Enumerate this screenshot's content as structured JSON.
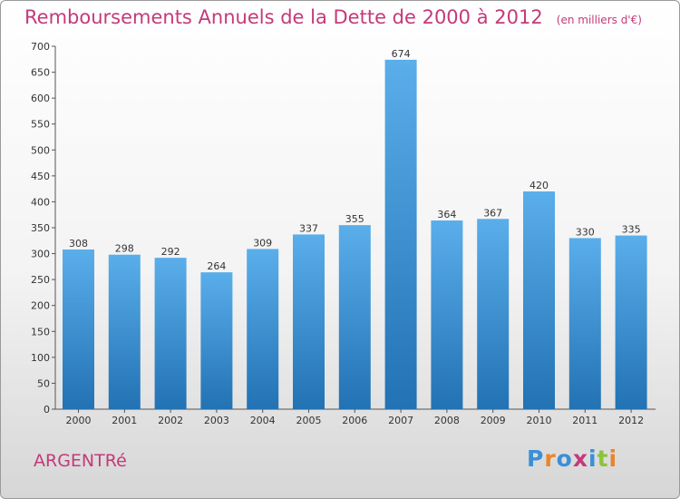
{
  "chart_data": {
    "type": "bar",
    "title": "Remboursements Annuels de la Dette de 2000 à 2012",
    "unit_note": "(en milliers d'€)",
    "categories": [
      "2000",
      "2001",
      "2002",
      "2003",
      "2004",
      "2005",
      "2006",
      "2007",
      "2008",
      "2009",
      "2010",
      "2011",
      "2012"
    ],
    "values": [
      308,
      298,
      292,
      264,
      309,
      337,
      355,
      674,
      364,
      367,
      420,
      330,
      335
    ],
    "ylim": [
      0,
      700
    ],
    "yticks": [
      0,
      50,
      100,
      150,
      200,
      250,
      300,
      350,
      400,
      450,
      500,
      550,
      600,
      650,
      700
    ],
    "grid": false,
    "xlabel": "",
    "ylabel": "",
    "bar_color_top": "#5aaeea",
    "bar_color_bottom": "#2272b4"
  },
  "footer": {
    "commune": "ARGENTRé",
    "logo_text": "Proxiti",
    "logo_colors": [
      "#3a8fd8",
      "#e8862a",
      "#3a8fd8",
      "#c43a7a",
      "#3a8fd8",
      "#8bc43a",
      "#e8862a"
    ]
  },
  "colors": {
    "title": "#c43a7a"
  }
}
